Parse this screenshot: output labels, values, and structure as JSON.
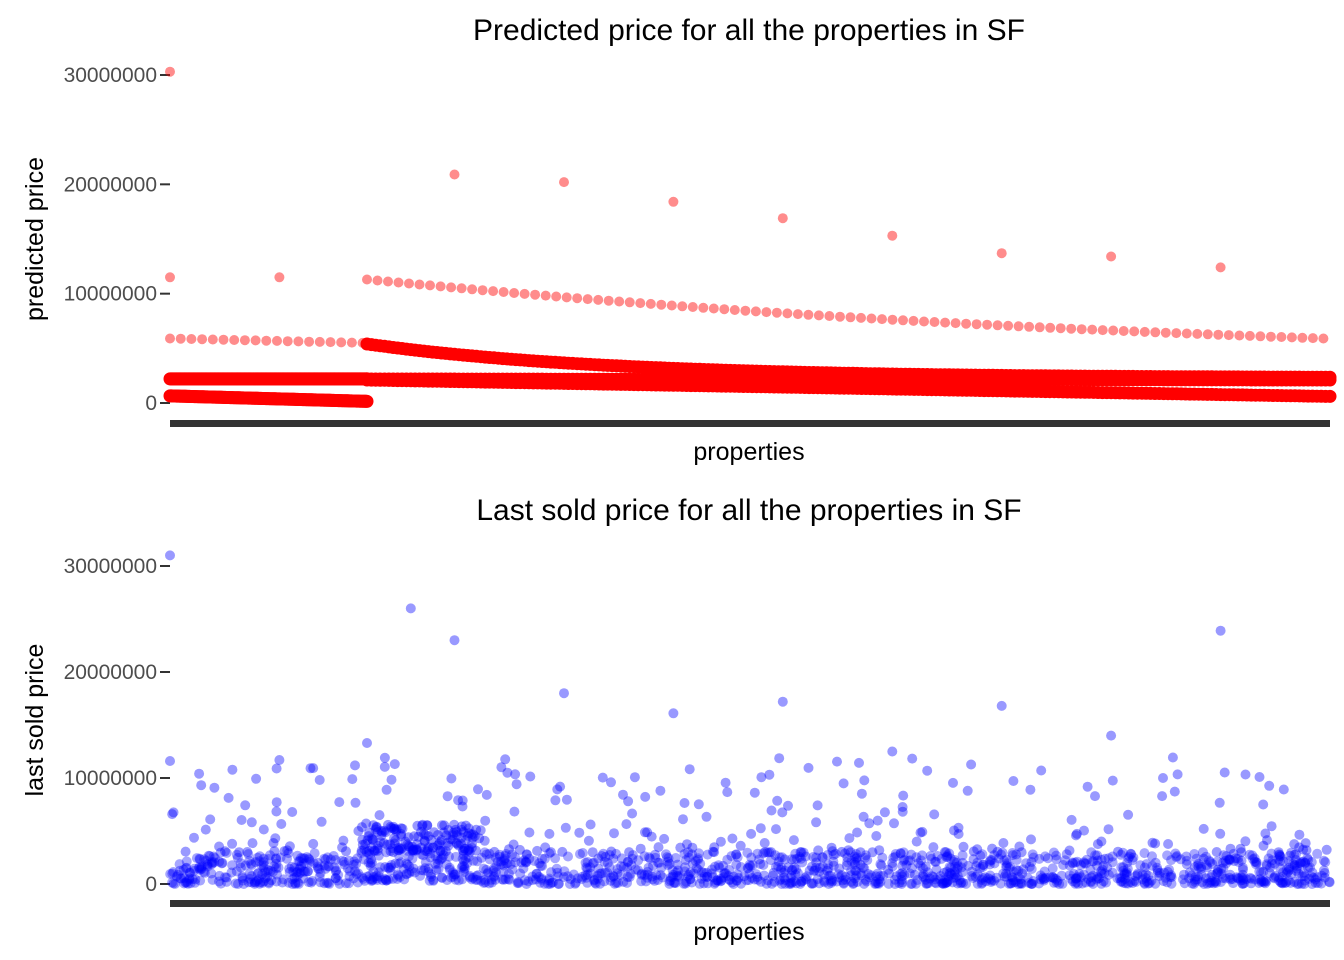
{
  "chart_data": [
    {
      "type": "scatter",
      "title": "Predicted price for all the properties in SF",
      "xlabel": "properties",
      "ylabel": "predicted price",
      "ylim": [
        0,
        30000000
      ],
      "yticks": [
        0,
        10000000,
        20000000,
        30000000
      ],
      "ytick_labels": [
        "0",
        "10000000",
        "20000000",
        "30000000"
      ],
      "x_tick_labels": "none (one point per property, x axis unlabeled)",
      "color": "#ff0000",
      "opacity": 0.45,
      "n_properties_approx": 5300,
      "series": [
        {
          "values_outliers": [
            {
              "x": 0,
              "y": 30300000
            },
            {
              "x": 0,
              "y": 11500000
            },
            {
              "x": 500,
              "y": 11500000
            },
            {
              "x": 1300,
              "y": 20900000
            },
            {
              "x": 1800,
              "y": 20200000
            },
            {
              "x": 2300,
              "y": 18400000
            },
            {
              "x": 2800,
              "y": 16900000
            },
            {
              "x": 3300,
              "y": 15300000
            },
            {
              "x": 3800,
              "y": 13700000
            },
            {
              "x": 4300,
              "y": 13400000
            },
            {
              "x": 4800,
              "y": 12400000
            }
          ],
          "dotted_bands": [
            {
              "x_from": 0,
              "x_to": 880,
              "y_from": 5900000,
              "y_to": 5500000
            },
            {
              "x_from": 900,
              "y_from": 11300000,
              "x_to": 5270,
              "y_to": 5900000
            }
          ],
          "dense_bands": [
            {
              "x_from": 0,
              "x_to": 900,
              "y_from": 2200000,
              "y_to": 2200000
            },
            {
              "x_from": 900,
              "x_to": 5300,
              "y_from": 2200000,
              "y_to": 2100000
            },
            {
              "x_from": 0,
              "x_to": 900,
              "y_from": 650000,
              "y_to": 150000
            },
            {
              "x_from": 900,
              "x_to": 5300,
              "y_from": 5400000,
              "y_to": 2300000
            },
            {
              "x_from": 900,
              "x_to": 5300,
              "y_from": 2100000,
              "y_to": 600000
            }
          ]
        }
      ]
    },
    {
      "type": "scatter",
      "title": "Last sold price for all the properties in SF",
      "xlabel": "properties",
      "ylabel": "last sold price",
      "ylim": [
        0,
        30000000
      ],
      "yticks": [
        0,
        10000000,
        20000000,
        30000000
      ],
      "ytick_labels": [
        "0",
        "10000000",
        "20000000",
        "30000000"
      ],
      "color": "#0000ff",
      "opacity": 0.4,
      "n_properties_approx": 5300,
      "series": [
        {
          "values_outliers": [
            {
              "x": 0,
              "y": 31000000
            },
            {
              "x": 1100,
              "y": 26000000
            },
            {
              "x": 1300,
              "y": 23000000
            },
            {
              "x": 1800,
              "y": 18000000
            },
            {
              "x": 2300,
              "y": 16100000
            },
            {
              "x": 2800,
              "y": 17200000
            },
            {
              "x": 3300,
              "y": 12500000
            },
            {
              "x": 3800,
              "y": 16800000
            },
            {
              "x": 4300,
              "y": 14000000
            },
            {
              "x": 4800,
              "y": 23900000
            },
            {
              "x": 0,
              "y": 11600000
            },
            {
              "x": 500,
              "y": 11700000
            },
            {
              "x": 900,
              "y": 13300000
            }
          ],
          "bulk_range_low": [
            0,
            3000000
          ],
          "bulk_range_mid": [
            3000000,
            12000000
          ]
        }
      ]
    }
  ]
}
